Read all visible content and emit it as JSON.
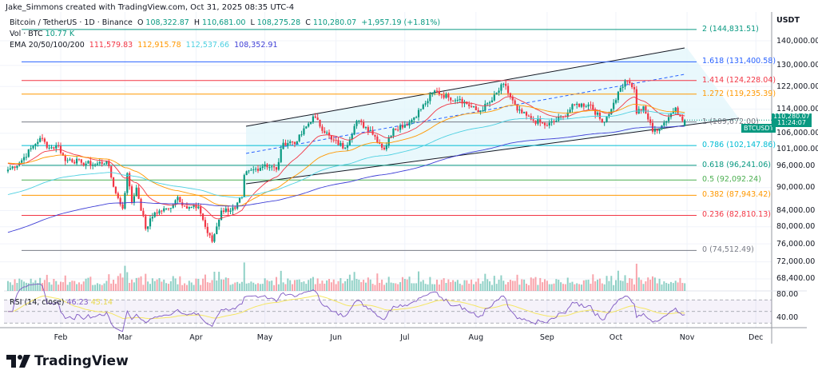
{
  "credit": "Jake_Simmons created with TradingView.com, Oct 31, 2025 08:35 UTC-4",
  "legend": {
    "symbol": "Bitcoin / TetherUS · 1D · Binance",
    "o_label": "O",
    "o": "108,322.87",
    "h_label": "H",
    "h": "110,681.00",
    "l_label": "L",
    "l": "108,275.28",
    "c_label": "C",
    "c": "110,280.07",
    "change": "+1,957.19 (+1.81%)",
    "vol_label": "Vol · BTC",
    "vol": "10.77 K",
    "ema_label": "EMA 20/50/100/200",
    "ema20": "111,579.83",
    "ema50": "112,915.78",
    "ema100": "112,537.66",
    "ema200": "108,352.91"
  },
  "axis": {
    "currency": "USDT",
    "price_ticks": [
      "140,000.00",
      "130,000.00",
      "122,000.00",
      "114,000.00",
      "106,000.00",
      "101,000.00",
      "96,000.00",
      "90,000.00",
      "84,000.00",
      "80,000.00",
      "76,000.00",
      "72,000.00",
      "68,400.00"
    ],
    "rsi_ticks": [
      "80.00",
      "40.00"
    ],
    "time_ticks": [
      "Feb",
      "Mar",
      "Apr",
      "May",
      "Jun",
      "Jul",
      "Aug",
      "Sep",
      "Oct",
      "Nov",
      "Dec"
    ]
  },
  "last_price": {
    "symbol": "BTCUSDT",
    "price": "110,280.07",
    "countdown": "11:24:07"
  },
  "fib": [
    {
      "label": "2 (144,831.51)",
      "value": 144831.51,
      "color": "#089981"
    },
    {
      "label": "1.618 (131,400.58)",
      "value": 131400.58,
      "color": "#2962ff"
    },
    {
      "label": "1.414 (124,228.04)",
      "value": 124228.04,
      "color": "#f23645"
    },
    {
      "label": "1.272 (119,235.39)",
      "value": 119235.39,
      "color": "#ff9800"
    },
    {
      "label": "1 (109,672.00)",
      "value": 109672.0,
      "color": "#787b86"
    },
    {
      "label": "0.786 (102,147.86)",
      "value": 102147.86,
      "color": "#00bcd4"
    },
    {
      "label": "0.618 (96,241.06)",
      "value": 96241.06,
      "color": "#089981"
    },
    {
      "label": "0.5 (92,092.24)",
      "value": 92092.24,
      "color": "#4caf50"
    },
    {
      "label": "0.382 (87,943.42)",
      "value": 87943.42,
      "color": "#ff9800"
    },
    {
      "label": "0.236 (82,810.13)",
      "value": 82810.13,
      "color": "#f23645"
    },
    {
      "label": "0 (74,512.49)",
      "value": 74512.49,
      "color": "#787b86"
    }
  ],
  "rsi": {
    "label": "RSI (14, close)",
    "value": "46.23",
    "ma": "45.14"
  },
  "logo": "TradingView",
  "colors": {
    "up": "#089981",
    "down": "#f23645",
    "ema20": "#f23645",
    "ema50": "#ff9800",
    "ema100": "#4dd0e1",
    "ema200": "#3f3fd6",
    "rsi": "#7e57c2",
    "rsi_ma": "#f5e663"
  },
  "chart_data": {
    "type": "candlestick",
    "symbol": "BTCUSDT",
    "interval": "1D",
    "scale": "log",
    "ylim": [
      68400,
      148000
    ],
    "xlim": [
      "2025-01-09",
      "2025-12-10"
    ],
    "approx_closes": [
      [
        "2025-01-09",
        95000
      ],
      [
        "2025-01-14",
        97000
      ],
      [
        "2025-01-20",
        102000
      ],
      [
        "2025-01-23",
        104500
      ],
      [
        "2025-01-27",
        101500
      ],
      [
        "2025-01-31",
        102000
      ],
      [
        "2025-02-03",
        97500
      ],
      [
        "2025-02-05",
        98000
      ],
      [
        "2025-02-10",
        97000
      ],
      [
        "2025-02-16",
        96500
      ],
      [
        "2025-02-21",
        97500
      ],
      [
        "2025-02-25",
        88500
      ],
      [
        "2025-02-28",
        84500
      ],
      [
        "2025-03-02",
        94000
      ],
      [
        "2025-03-04",
        86000
      ],
      [
        "2025-03-06",
        90000
      ],
      [
        "2025-03-10",
        79500
      ],
      [
        "2025-03-14",
        83500
      ],
      [
        "2025-03-20",
        84500
      ],
      [
        "2025-03-24",
        87500
      ],
      [
        "2025-03-28",
        84500
      ],
      [
        "2025-04-02",
        85000
      ],
      [
        "2025-04-06",
        78500
      ],
      [
        "2025-04-08",
        76500
      ],
      [
        "2025-04-12",
        84000
      ],
      [
        "2025-04-18",
        84500
      ],
      [
        "2025-04-21",
        87500
      ],
      [
        "2025-04-22",
        93500
      ],
      [
        "2025-05-01",
        96500
      ],
      [
        "2025-05-06",
        95000
      ],
      [
        "2025-05-09",
        103000
      ],
      [
        "2025-05-15",
        103500
      ],
      [
        "2025-05-22",
        111500
      ],
      [
        "2025-05-30",
        104000
      ],
      [
        "2025-06-05",
        101500
      ],
      [
        "2025-06-10",
        110000
      ],
      [
        "2025-06-16",
        107000
      ],
      [
        "2025-06-22",
        101000
      ],
      [
        "2025-06-26",
        107500
      ],
      [
        "2025-07-03",
        109500
      ],
      [
        "2025-07-10",
        116000
      ],
      [
        "2025-07-14",
        120500
      ],
      [
        "2025-07-20",
        118000
      ],
      [
        "2025-07-25",
        117500
      ],
      [
        "2025-08-02",
        113000
      ],
      [
        "2025-08-08",
        117000
      ],
      [
        "2025-08-13",
        123000
      ],
      [
        "2025-08-19",
        113500
      ],
      [
        "2025-08-25",
        110500
      ],
      [
        "2025-09-01",
        108500
      ],
      [
        "2025-09-08",
        111500
      ],
      [
        "2025-09-13",
        115500
      ],
      [
        "2025-09-20",
        115500
      ],
      [
        "2025-09-25",
        109500
      ],
      [
        "2025-09-29",
        114000
      ],
      [
        "2025-10-03",
        121500
      ],
      [
        "2025-10-06",
        124000
      ],
      [
        "2025-10-09",
        121000
      ],
      [
        "2025-10-10",
        112500
      ],
      [
        "2025-10-13",
        115000
      ],
      [
        "2025-10-17",
        106500
      ],
      [
        "2025-10-21",
        108500
      ],
      [
        "2025-10-27",
        114500
      ],
      [
        "2025-10-29",
        111500
      ],
      [
        "2025-10-31",
        110280.07
      ]
    ],
    "last_candle": {
      "open": 108322.87,
      "high": 110681.0,
      "low": 108275.28,
      "close": 110280.07
    },
    "indicators": [
      "EMA 20",
      "EMA 50",
      "EMA 100",
      "EMA 200",
      "Volume",
      "RSI 14"
    ],
    "drawings": [
      "Fibonacci retracement",
      "Parallel channel"
    ]
  }
}
